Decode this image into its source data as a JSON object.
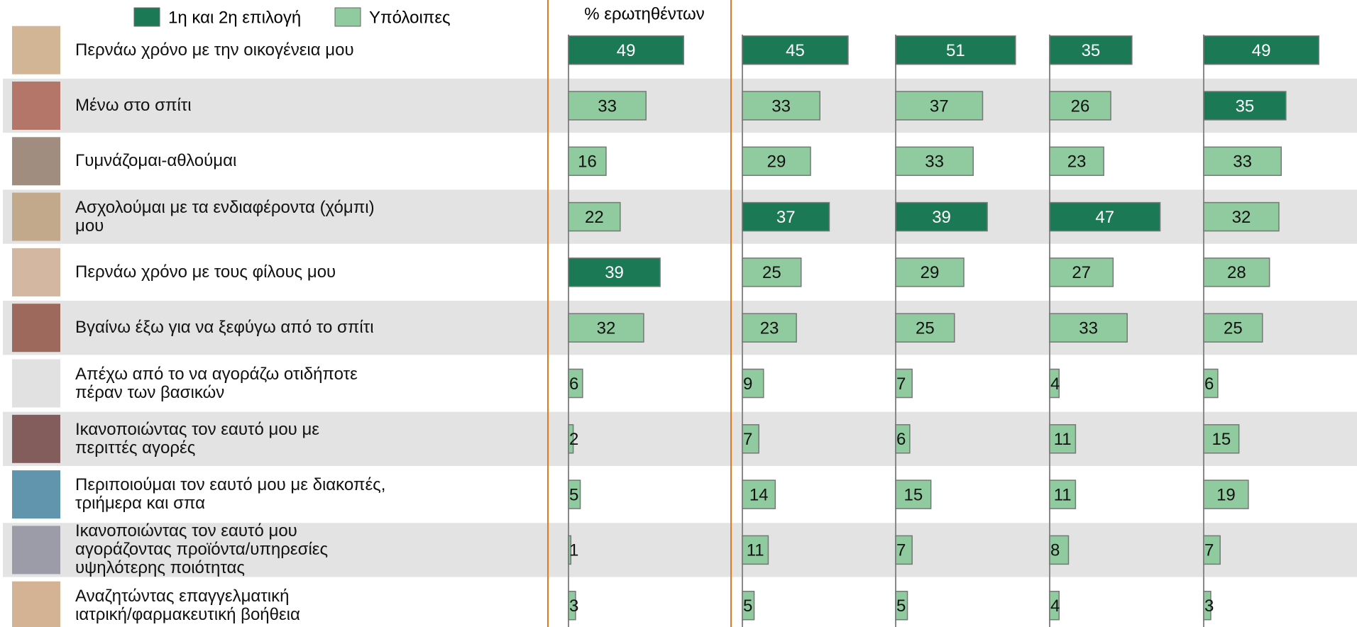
{
  "chart_data": [
    {
      "type": "bar",
      "title": "% ερωτηθέντων",
      "legend": [
        {
          "name": "1η και 2η  επιλογή",
          "color": "#1b7a55"
        },
        {
          "name": "Υπόλοιπες",
          "color": "#8fcb9f"
        }
      ],
      "categories": [
        "Περνάω χρόνο με την οικογένεια μου",
        "Μένω στο σπίτι",
        "Γυμνάζομαι-αθλούμαι",
        "Ασχολούμαι με τα ενδιαφέροντα (χόμπι)\nμου",
        "Περνάω χρόνο με τους φίλους μου",
        "Βγαίνω έξω για να ξεφύγω από το σπίτι",
        "Απέχω από το να αγοράζω οτιδήποτε\nπέραν των βασικών",
        "Ικανοποιώντας τον εαυτό μου με\nπεριττές αγορές",
        "Περιποιούμαι τον εαυτό μου με διακοπές,\nτριήμερα και σπα",
        "Ικανοποιώντας τον εαυτό μου\nαγοράζοντας προϊόντα/υπηρεσίες\nυψηλότερης ποιότητας",
        "Αναζητώντας επαγγελματική\nιατρική/φαρμακευτική βοήθεια"
      ],
      "values": [
        49,
        33,
        16,
        22,
        39,
        32,
        6,
        2,
        5,
        1,
        3
      ],
      "colors": [
        "#1b7a55",
        "#8fcb9f",
        "#8fcb9f",
        "#8fcb9f",
        "#1b7a55",
        "#8fcb9f",
        "#8fcb9f",
        "#8fcb9f",
        "#8fcb9f",
        "#8fcb9f",
        "#8fcb9f"
      ]
    },
    {
      "type": "bar",
      "values": [
        45,
        33,
        29,
        37,
        25,
        23,
        9,
        7,
        14,
        11,
        5
      ],
      "colors": [
        "#1b7a55",
        "#8fcb9f",
        "#8fcb9f",
        "#1b7a55",
        "#8fcb9f",
        "#8fcb9f",
        "#8fcb9f",
        "#8fcb9f",
        "#8fcb9f",
        "#8fcb9f",
        "#8fcb9f"
      ]
    },
    {
      "type": "bar",
      "values": [
        51,
        37,
        33,
        39,
        29,
        25,
        7,
        6,
        15,
        7,
        5
      ],
      "colors": [
        "#1b7a55",
        "#8fcb9f",
        "#8fcb9f",
        "#1b7a55",
        "#8fcb9f",
        "#8fcb9f",
        "#8fcb9f",
        "#8fcb9f",
        "#8fcb9f",
        "#8fcb9f",
        "#8fcb9f"
      ]
    },
    {
      "type": "bar",
      "values": [
        35,
        26,
        23,
        47,
        27,
        33,
        4,
        11,
        11,
        8,
        4
      ],
      "colors": [
        "#1b7a55",
        "#8fcb9f",
        "#8fcb9f",
        "#1b7a55",
        "#8fcb9f",
        "#8fcb9f",
        "#8fcb9f",
        "#8fcb9f",
        "#8fcb9f",
        "#8fcb9f",
        "#8fcb9f"
      ]
    },
    {
      "type": "bar",
      "values": [
        49,
        35,
        33,
        32,
        28,
        25,
        6,
        15,
        19,
        7,
        3
      ],
      "colors": [
        "#1b7a55",
        "#1b7a55",
        "#8fcb9f",
        "#8fcb9f",
        "#8fcb9f",
        "#8fcb9f",
        "#8fcb9f",
        "#8fcb9f",
        "#8fcb9f",
        "#8fcb9f",
        "#8fcb9f"
      ]
    }
  ]
}
